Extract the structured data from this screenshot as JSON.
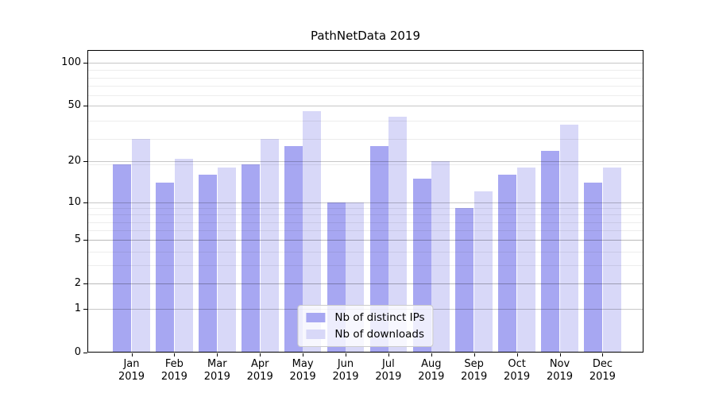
{
  "title": "PathNetData 2019",
  "chart_data": {
    "type": "bar",
    "title": "PathNetData 2019",
    "y_scale": "log1p",
    "ylim": [
      0,
      123
    ],
    "grid": "both",
    "legend_position": "lower center",
    "y_ticks": [
      0,
      1,
      2,
      5,
      10,
      20,
      50,
      100
    ],
    "categories": [
      {
        "month": "Jan",
        "year": "2019"
      },
      {
        "month": "Feb",
        "year": "2019"
      },
      {
        "month": "Mar",
        "year": "2019"
      },
      {
        "month": "Apr",
        "year": "2019"
      },
      {
        "month": "May",
        "year": "2019"
      },
      {
        "month": "Jun",
        "year": "2019"
      },
      {
        "month": "Jul",
        "year": "2019"
      },
      {
        "month": "Aug",
        "year": "2019"
      },
      {
        "month": "Sep",
        "year": "2019"
      },
      {
        "month": "Oct",
        "year": "2019"
      },
      {
        "month": "Nov",
        "year": "2019"
      },
      {
        "month": "Dec",
        "year": "2019"
      }
    ],
    "series": [
      {
        "name": "Nb of distinct IPs",
        "color": "#a7a7f2",
        "values": [
          19,
          14,
          16,
          19,
          26,
          10,
          26,
          15,
          9,
          16,
          24,
          14
        ]
      },
      {
        "name": "Nb of downloads",
        "color": "#d8d8f8",
        "values": [
          29,
          21,
          18,
          29,
          46,
          10,
          42,
          20,
          12,
          18,
          37,
          18
        ]
      }
    ]
  },
  "legend": {
    "entries": [
      "Nb of distinct IPs",
      "Nb of downloads"
    ]
  }
}
